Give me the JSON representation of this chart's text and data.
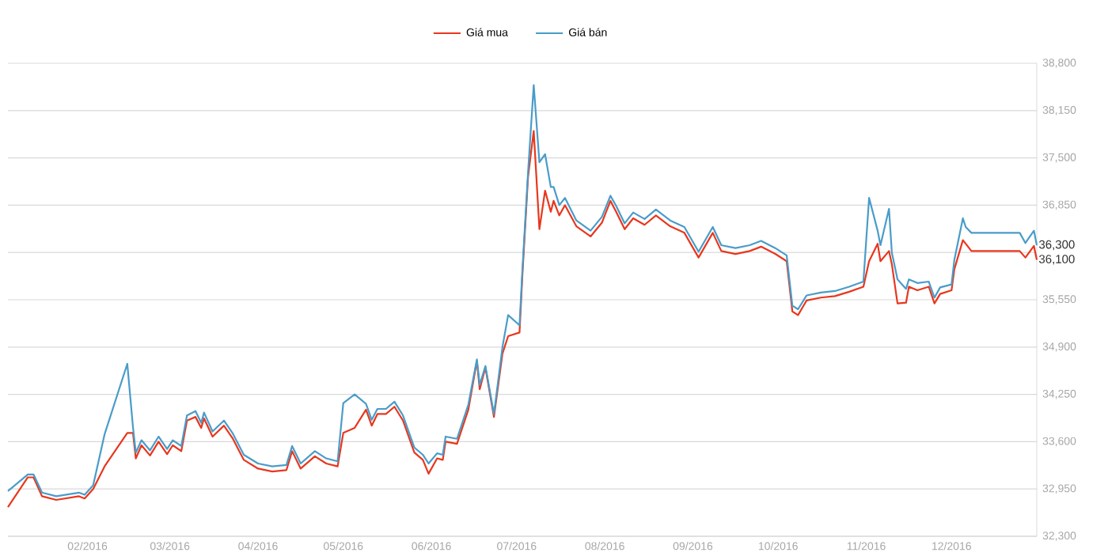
{
  "chart_data": {
    "type": "line",
    "x": [
      "2016-01-04",
      "2016-01-11",
      "2016-01-13",
      "2016-01-16",
      "2016-01-21",
      "2016-01-29",
      "2016-01-31",
      "2016-02-03",
      "2016-02-07",
      "2016-02-15",
      "2016-02-17",
      "2016-02-18",
      "2016-02-20",
      "2016-02-23",
      "2016-02-26",
      "2016-02-29",
      "2016-03-02",
      "2016-03-05",
      "2016-03-07",
      "2016-03-10",
      "2016-03-12",
      "2016-03-13",
      "2016-03-16",
      "2016-03-20",
      "2016-03-23",
      "2016-03-27",
      "2016-04-01",
      "2016-04-06",
      "2016-04-11",
      "2016-04-13",
      "2016-04-16",
      "2016-04-21",
      "2016-04-25",
      "2016-04-29",
      "2016-05-01",
      "2016-05-05",
      "2016-05-09",
      "2016-05-11",
      "2016-05-13",
      "2016-05-16",
      "2016-05-19",
      "2016-05-22",
      "2016-05-26",
      "2016-05-29",
      "2016-05-31",
      "2016-06-03",
      "2016-06-05",
      "2016-06-06",
      "2016-06-10",
      "2016-06-14",
      "2016-06-17",
      "2016-06-18",
      "2016-06-20",
      "2016-06-23",
      "2016-06-26",
      "2016-06-28",
      "2016-07-02",
      "2016-07-03",
      "2016-07-05",
      "2016-07-07",
      "2016-07-09",
      "2016-07-11",
      "2016-07-13",
      "2016-07-14",
      "2016-07-16",
      "2016-07-18",
      "2016-07-22",
      "2016-07-27",
      "2016-07-31",
      "2016-08-03",
      "2016-08-05",
      "2016-08-08",
      "2016-08-11",
      "2016-08-15",
      "2016-08-19",
      "2016-08-24",
      "2016-08-29",
      "2016-09-03",
      "2016-09-08",
      "2016-09-11",
      "2016-09-16",
      "2016-09-21",
      "2016-09-25",
      "2016-09-30",
      "2016-10-04",
      "2016-10-06",
      "2016-10-08",
      "2016-10-11",
      "2016-10-16",
      "2016-10-21",
      "2016-10-26",
      "2016-10-31",
      "2016-11-02",
      "2016-11-05",
      "2016-11-06",
      "2016-11-09",
      "2016-11-10",
      "2016-11-12",
      "2016-11-15",
      "2016-11-16",
      "2016-11-19",
      "2016-11-23",
      "2016-11-25",
      "2016-11-27",
      "2016-12-01",
      "2016-12-02",
      "2016-12-05",
      "2016-12-06",
      "2016-12-08",
      "2016-12-25",
      "2016-12-27",
      "2016-12-30",
      "2016-12-31"
    ],
    "series": [
      {
        "name": "Giá mua",
        "color": "#e8371e",
        "values": [
          32700,
          33110,
          33110,
          32850,
          32800,
          32850,
          32820,
          32950,
          33260,
          33720,
          33720,
          33370,
          33550,
          33410,
          33600,
          33430,
          33550,
          33470,
          33890,
          33940,
          33790,
          33920,
          33670,
          33820,
          33650,
          33350,
          33230,
          33190,
          33210,
          33470,
          33230,
          33400,
          33300,
          33260,
          33720,
          33790,
          34040,
          33820,
          33980,
          33980,
          34080,
          33890,
          33450,
          33350,
          33160,
          33370,
          33350,
          33600,
          33570,
          34040,
          34710,
          34320,
          34620,
          33940,
          34810,
          35050,
          35100,
          35880,
          37240,
          37870,
          36520,
          37050,
          36760,
          36910,
          36710,
          36850,
          36560,
          36420,
          36610,
          36910,
          36760,
          36520,
          36670,
          36580,
          36710,
          36560,
          36470,
          36130,
          36470,
          36220,
          36180,
          36220,
          36280,
          36180,
          36080,
          35390,
          35340,
          35540,
          35580,
          35600,
          35660,
          35730,
          36080,
          36320,
          36080,
          36220,
          36040,
          35500,
          35510,
          35730,
          35680,
          35730,
          35500,
          35630,
          35680,
          35970,
          36370,
          36320,
          36220,
          36220,
          36130,
          36290,
          36100
        ]
      },
      {
        "name": "Giá bán",
        "color": "#4a9cc9",
        "values": [
          32920,
          33150,
          33150,
          32900,
          32850,
          32900,
          32870,
          33000,
          33700,
          34670,
          33800,
          33450,
          33620,
          33480,
          33670,
          33500,
          33620,
          33540,
          33960,
          34020,
          33860,
          34000,
          33740,
          33890,
          33720,
          33420,
          33300,
          33260,
          33280,
          33540,
          33300,
          33470,
          33370,
          33330,
          34130,
          34250,
          34120,
          33900,
          34050,
          34050,
          34150,
          33960,
          33520,
          33420,
          33300,
          33440,
          33420,
          33670,
          33640,
          34110,
          34730,
          34380,
          34640,
          33980,
          34900,
          35340,
          35200,
          35950,
          37300,
          38500,
          37440,
          37550,
          37100,
          37100,
          36850,
          36950,
          36640,
          36500,
          36690,
          36980,
          36840,
          36600,
          36750,
          36660,
          36790,
          36640,
          36550,
          36210,
          36550,
          36300,
          36260,
          36300,
          36360,
          36260,
          36160,
          35470,
          35420,
          35610,
          35650,
          35670,
          35730,
          35800,
          36950,
          36500,
          36300,
          36800,
          36200,
          35830,
          35700,
          35830,
          35780,
          35800,
          35580,
          35720,
          35760,
          36100,
          36670,
          36550,
          36470,
          36470,
          36330,
          36500,
          36300
        ]
      }
    ],
    "xlim": [
      "2016-01-04",
      "2016-12-31"
    ],
    "xticks": [
      {
        "value": "2016-02-01",
        "label": "02/2016"
      },
      {
        "value": "2016-03-01",
        "label": "03/2016"
      },
      {
        "value": "2016-04-01",
        "label": "04/2016"
      },
      {
        "value": "2016-05-01",
        "label": "05/2016"
      },
      {
        "value": "2016-06-01",
        "label": "06/2016"
      },
      {
        "value": "2016-07-01",
        "label": "07/2016"
      },
      {
        "value": "2016-08-01",
        "label": "08/2016"
      },
      {
        "value": "2016-09-01",
        "label": "09/2016"
      },
      {
        "value": "2016-10-01",
        "label": "10/2016"
      },
      {
        "value": "2016-11-01",
        "label": "11/2016"
      },
      {
        "value": "2016-12-01",
        "label": "12/2016"
      }
    ],
    "ylim": [
      32300,
      38800
    ],
    "yticks": [
      {
        "value": 32300,
        "label": "32,300"
      },
      {
        "value": 32950,
        "label": "32,950"
      },
      {
        "value": 33600,
        "label": "33,600"
      },
      {
        "value": 34250,
        "label": "34,250"
      },
      {
        "value": 34900,
        "label": "34,900"
      },
      {
        "value": 35550,
        "label": "35,550"
      },
      {
        "value": 36200,
        "label": null
      },
      {
        "value": 36850,
        "label": "36,850"
      },
      {
        "value": 37500,
        "label": "37,500"
      },
      {
        "value": 38150,
        "label": "38,150"
      },
      {
        "value": 38800,
        "label": "38,800"
      }
    ],
    "annotations": [
      {
        "text": "36,300",
        "x": "2016-12-31",
        "y": 36300
      },
      {
        "text": "36,100",
        "x": "2016-12-31",
        "y": 36100
      }
    ],
    "grid": "y",
    "legend": "top",
    "marker": "none",
    "line_style": "solid"
  }
}
